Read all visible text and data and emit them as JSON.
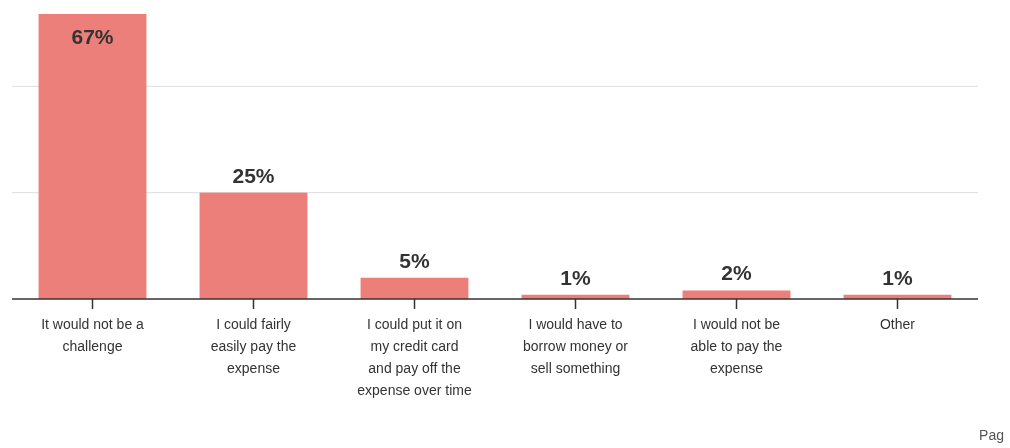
{
  "chart_data": {
    "type": "bar",
    "categories": [
      "It would not be a challenge",
      "I could fairly easily pay the expense",
      "I could put it on my credit card and pay off the expense over time",
      "I would have to borrow money or sell something",
      "I would not be able to pay the expense",
      "Other"
    ],
    "values": [
      67,
      25,
      5,
      1,
      2,
      1
    ],
    "value_labels": [
      "67%",
      "25%",
      "5%",
      "1%",
      "2%",
      "1%"
    ],
    "color": "#ec7f7a",
    "ref_lines": [
      {
        "axis": "y",
        "value": 25,
        "color": "#dddddd"
      },
      {
        "axis": "y",
        "value": 50,
        "color": "#dddddd"
      }
    ],
    "tick_labels": "x",
    "annotations": [
      "Pag"
    ]
  }
}
